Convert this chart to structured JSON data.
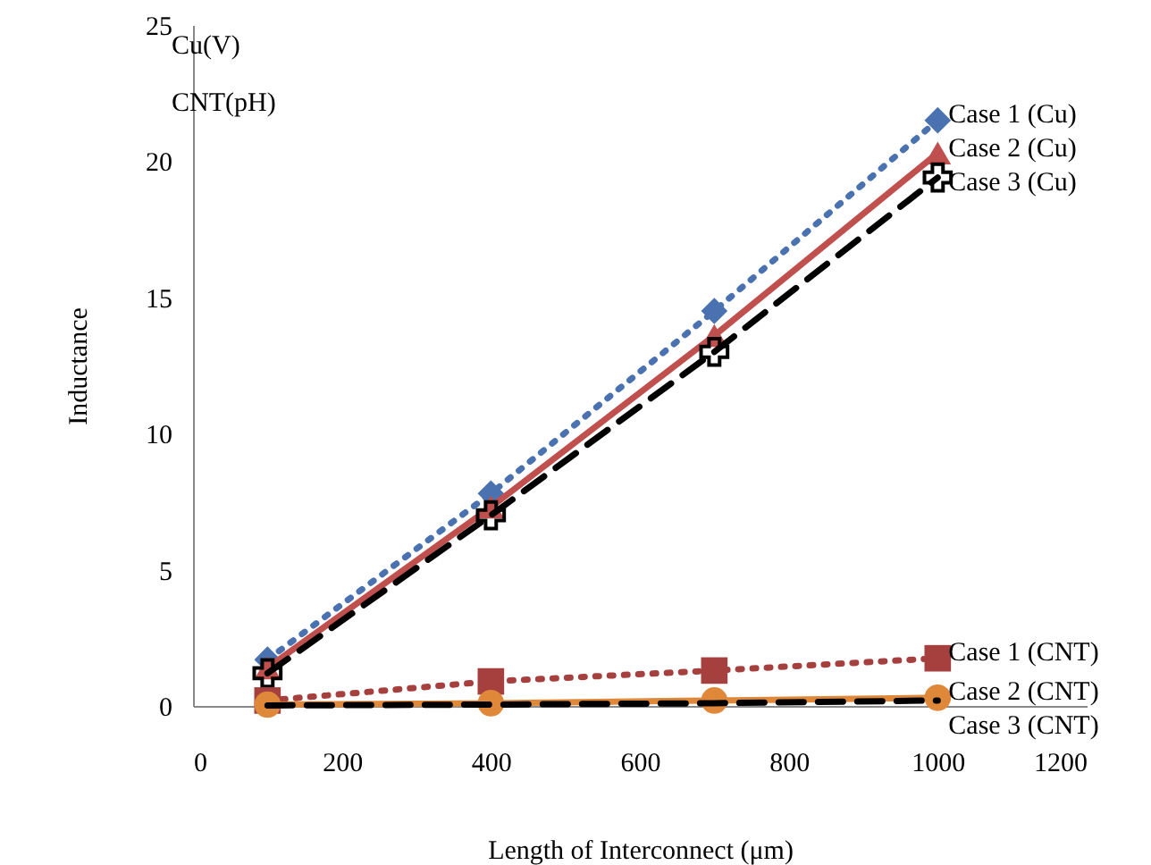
{
  "chart_data": {
    "type": "line",
    "xlabel": "Length of Interconnect (μm)",
    "ylabel": "Inductance",
    "x": [
      100,
      400,
      700,
      1000
    ],
    "xlim": [
      0,
      1200
    ],
    "xticks": [
      0,
      200,
      400,
      600,
      800,
      1000,
      1200
    ],
    "ylim": [
      0,
      25
    ],
    "yticks": [
      0,
      5,
      10,
      15,
      20,
      25
    ],
    "grid": false,
    "annotations": [
      "Cu(V)",
      "CNT(pH)"
    ],
    "series": [
      {
        "name": "Case 1 (Cu)",
        "color": "#4a72b0",
        "marker": "diamond",
        "line_style": "dotted",
        "values": [
          1.7,
          7.8,
          14.5,
          21.5
        ]
      },
      {
        "name": "Case 2 (Cu)",
        "color": "#c0504d",
        "marker": "triangle",
        "line_style": "solid",
        "values": [
          1.4,
          7.3,
          13.6,
          20.3
        ]
      },
      {
        "name": "Case 3 (Cu)",
        "color": "#000000",
        "marker": "cross",
        "line_style": "dashed",
        "values": [
          1.2,
          7.0,
          13.0,
          19.4
        ]
      },
      {
        "name": "Case 1 (CNT)",
        "color": "#a5403e",
        "marker": "square",
        "line_style": "dotted",
        "values": [
          0.2,
          0.9,
          1.3,
          1.75
        ]
      },
      {
        "name": "Case 2 (CNT)",
        "color": "#e0883a",
        "marker": "circle",
        "line_style": "solid",
        "values": [
          0.05,
          0.1,
          0.2,
          0.3
        ]
      },
      {
        "name": "Case 3 (CNT)",
        "color": "#000000",
        "marker": "none",
        "line_style": "dashed",
        "values": [
          0.02,
          0.05,
          0.1,
          0.2
        ]
      }
    ]
  }
}
